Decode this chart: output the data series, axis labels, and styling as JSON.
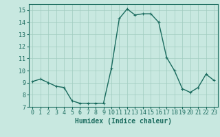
{
  "x": [
    0,
    1,
    2,
    3,
    4,
    5,
    6,
    7,
    8,
    9,
    10,
    11,
    12,
    13,
    14,
    15,
    16,
    17,
    18,
    19,
    20,
    21,
    22,
    23
  ],
  "y": [
    9.1,
    9.3,
    9.0,
    8.7,
    8.6,
    7.5,
    7.3,
    7.3,
    7.3,
    7.3,
    10.2,
    14.3,
    15.1,
    14.6,
    14.7,
    14.7,
    14.0,
    11.1,
    10.0,
    8.5,
    8.2,
    8.6,
    9.7,
    9.2
  ],
  "line_color": "#1a6b5e",
  "marker": "+",
  "marker_size": 3,
  "bg_color": "#c8e8e0",
  "grid_color": "#a0ccc0",
  "xlabel": "Humidex (Indice chaleur)",
  "xlim": [
    -0.5,
    23.5
  ],
  "ylim": [
    7,
    15.5
  ],
  "yticks": [
    7,
    8,
    9,
    10,
    11,
    12,
    13,
    14,
    15
  ],
  "xticks": [
    0,
    1,
    2,
    3,
    4,
    5,
    6,
    7,
    8,
    9,
    10,
    11,
    12,
    13,
    14,
    15,
    16,
    17,
    18,
    19,
    20,
    21,
    22,
    23
  ],
  "xlabel_fontsize": 7,
  "tick_fontsize": 6,
  "line_width": 1.0
}
